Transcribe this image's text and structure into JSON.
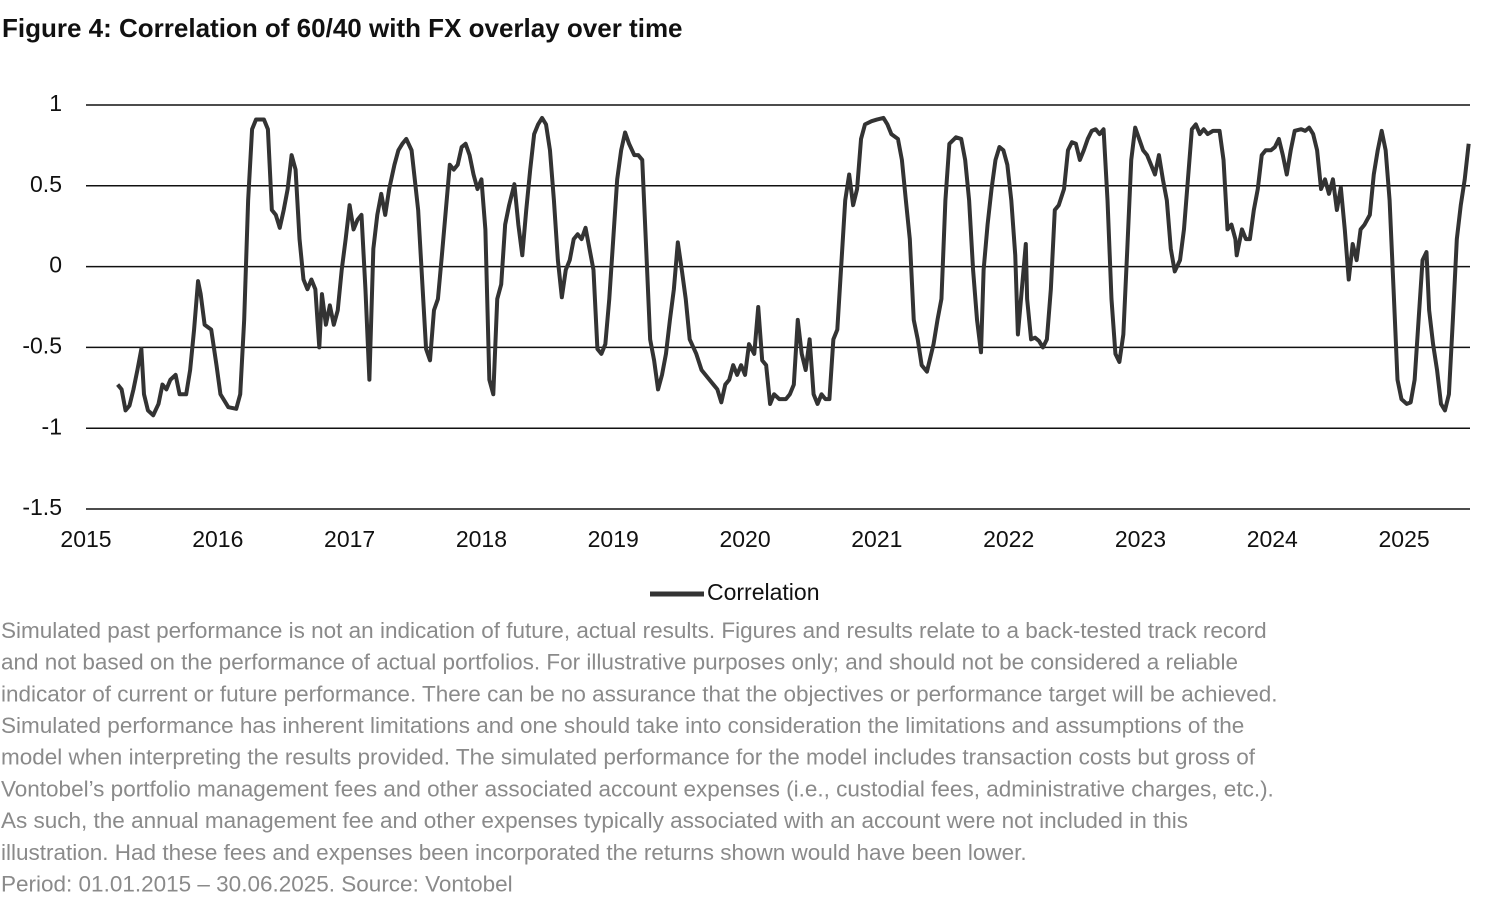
{
  "chart_data": {
    "type": "line",
    "title": "Figure 4: Correlation of 60/40 with FX overlay over time",
    "xlim": [
      2015,
      2025.5
    ],
    "xticks": [
      2015,
      2016,
      2017,
      2018,
      2019,
      2020,
      2021,
      2022,
      2023,
      2024,
      2025
    ],
    "ylim": [
      -1.5,
      1
    ],
    "yticks": [
      -1.5,
      -1,
      -0.5,
      0,
      0.5,
      1
    ],
    "grid": true,
    "legend": "bottom",
    "x": [
      2015.24,
      2015.27,
      2015.3,
      2015.33,
      2015.36,
      2015.39,
      2015.42,
      2015.44,
      2015.47,
      2015.51,
      2015.55,
      2015.58,
      2015.61,
      2015.64,
      2015.68,
      2015.71,
      2015.76,
      2015.79,
      2015.82,
      2015.85,
      2015.87,
      2015.9,
      2015.95,
      2015.99,
      2016.02,
      2016.08,
      2016.14,
      2016.17,
      2016.2,
      2016.23,
      2016.26,
      2016.29,
      2016.35,
      2016.38,
      2016.41,
      2016.44,
      2016.47,
      2016.5,
      2016.53,
      2016.56,
      2016.59,
      2016.62,
      2016.65,
      2016.68,
      2016.71,
      2016.74,
      2016.77,
      2016.79,
      2016.82,
      2016.85,
      2016.88,
      2016.91,
      2016.94,
      2016.97,
      2017.0,
      2017.03,
      2017.06,
      2017.09,
      2017.12,
      2017.15,
      2017.18,
      2017.21,
      2017.24,
      2017.27,
      2017.3,
      2017.34,
      2017.37,
      2017.4,
      2017.43,
      2017.47,
      2017.52,
      2017.55,
      2017.58,
      2017.61,
      2017.64,
      2017.67,
      2017.7,
      2017.73,
      2017.76,
      2017.79,
      2017.82,
      2017.85,
      2017.88,
      2017.91,
      2017.94,
      2017.97,
      2018.0,
      2018.03,
      2018.06,
      2018.09,
      2018.12,
      2018.15,
      2018.18,
      2018.21,
      2018.25,
      2018.28,
      2018.31,
      2018.34,
      2018.37,
      2018.4,
      2018.43,
      2018.46,
      2018.49,
      2018.52,
      2018.55,
      2018.58,
      2018.61,
      2018.64,
      2018.67,
      2018.7,
      2018.73,
      2018.76,
      2018.79,
      2018.82,
      2018.85,
      2018.88,
      2018.91,
      2018.94,
      2018.97,
      2019.0,
      2019.03,
      2019.06,
      2019.09,
      2019.12,
      2019.16,
      2019.19,
      2019.22,
      2019.25,
      2019.28,
      2019.31,
      2019.34,
      2019.37,
      2019.4,
      2019.43,
      2019.46,
      2019.49,
      2019.52,
      2019.55,
      2019.58,
      2019.63,
      2019.67,
      2019.72,
      2019.76,
      2019.79,
      2019.82,
      2019.85,
      2019.88,
      2019.91,
      2019.94,
      2019.97,
      2020.0,
      2020.03,
      2020.07,
      2020.1,
      2020.13,
      2020.16,
      2020.19,
      2020.22,
      2020.26,
      2020.31,
      2020.34,
      2020.37,
      2020.4,
      2020.43,
      2020.46,
      2020.49,
      2020.52,
      2020.55,
      2020.58,
      2020.61,
      2020.64,
      2020.67,
      2020.7,
      2020.73,
      2020.76,
      2020.79,
      2020.82,
      2020.85,
      2020.88,
      2020.91,
      2020.96,
      2021.0,
      2021.05,
      2021.08,
      2021.11,
      2021.16,
      2021.19,
      2021.22,
      2021.25,
      2021.28,
      2021.31,
      2021.34,
      2021.38,
      2021.43,
      2021.46,
      2021.49,
      2021.52,
      2021.55,
      2021.6,
      2021.64,
      2021.67,
      2021.7,
      2021.73,
      2021.76,
      2021.79,
      2021.81,
      2021.84,
      2021.87,
      2021.9,
      2021.93,
      2021.96,
      2021.99,
      2022.02,
      2022.05,
      2022.07,
      2022.1,
      2022.13,
      2022.14,
      2022.17,
      2022.2,
      2022.23,
      2022.26,
      2022.29,
      2022.32,
      2022.35,
      2022.38,
      2022.42,
      2022.45,
      2022.48,
      2022.51,
      2022.54,
      2022.57,
      2022.6,
      2022.63,
      2022.66,
      2022.69,
      2022.72,
      2022.75,
      2022.78,
      2022.81,
      2022.84,
      2022.87,
      2022.9,
      2022.93,
      2022.96,
      2022.99,
      2023.02,
      2023.05,
      2023.08,
      2023.11,
      2023.14,
      2023.17,
      2023.2,
      2023.23,
      2023.26,
      2023.3,
      2023.33,
      2023.36,
      2023.39,
      2023.42,
      2023.45,
      2023.48,
      2023.51,
      2023.55,
      2023.6,
      2023.63,
      2023.66,
      2023.69,
      2023.72,
      2023.73,
      2023.77,
      2023.8,
      2023.83,
      2023.86,
      2023.89,
      2023.92,
      2023.95,
      2023.99,
      2024.02,
      2024.05,
      2024.08,
      2024.11,
      2024.14,
      2024.17,
      2024.22,
      2024.25,
      2024.28,
      2024.31,
      2024.34,
      2024.37,
      2024.4,
      2024.43,
      2024.46,
      2024.49,
      2024.52,
      2024.55,
      2024.58,
      2024.61,
      2024.64,
      2024.67,
      2024.7,
      2024.74,
      2024.77,
      2024.8,
      2024.83,
      2024.86,
      2024.89,
      2024.92,
      2024.95,
      2024.98,
      2025.02,
      2025.05,
      2025.08,
      2025.11,
      2025.14,
      2025.17,
      2025.19,
      2025.22,
      2025.25,
      2025.28,
      2025.31,
      2025.34,
      2025.37,
      2025.4,
      2025.43,
      2025.46,
      2025.49
    ],
    "series": [
      {
        "name": "Correlation",
        "color": "#333333",
        "values": [
          -0.73,
          -0.76,
          -0.89,
          -0.86,
          -0.76,
          -0.64,
          -0.51,
          -0.79,
          -0.89,
          -0.92,
          -0.85,
          -0.73,
          -0.76,
          -0.7,
          -0.67,
          -0.79,
          -0.79,
          -0.64,
          -0.39,
          -0.09,
          -0.17,
          -0.36,
          -0.39,
          -0.61,
          -0.79,
          -0.87,
          -0.88,
          -0.79,
          -0.33,
          0.41,
          0.85,
          0.91,
          0.91,
          0.85,
          0.35,
          0.32,
          0.24,
          0.35,
          0.48,
          0.69,
          0.6,
          0.17,
          -0.08,
          -0.14,
          -0.08,
          -0.14,
          -0.5,
          -0.17,
          -0.36,
          -0.24,
          -0.36,
          -0.27,
          -0.02,
          0.17,
          0.38,
          0.23,
          0.29,
          0.32,
          -0.14,
          -0.7,
          0.11,
          0.32,
          0.45,
          0.32,
          0.48,
          0.63,
          0.72,
          0.76,
          0.79,
          0.72,
          0.35,
          -0.08,
          -0.51,
          -0.58,
          -0.27,
          -0.2,
          0.07,
          0.35,
          0.63,
          0.6,
          0.63,
          0.74,
          0.76,
          0.69,
          0.57,
          0.48,
          0.54,
          0.23,
          -0.7,
          -0.79,
          -0.2,
          -0.11,
          0.26,
          0.38,
          0.51,
          0.26,
          0.07,
          0.35,
          0.6,
          0.82,
          0.88,
          0.92,
          0.88,
          0.72,
          0.41,
          0.04,
          -0.19,
          -0.02,
          0.04,
          0.17,
          0.2,
          0.17,
          0.24,
          0.11,
          -0.02,
          -0.51,
          -0.54,
          -0.48,
          -0.2,
          0.17,
          0.54,
          0.72,
          0.83,
          0.76,
          0.69,
          0.69,
          0.66,
          0.11,
          -0.45,
          -0.58,
          -0.76,
          -0.67,
          -0.54,
          -0.33,
          -0.14,
          0.15,
          -0.02,
          -0.2,
          -0.45,
          -0.54,
          -0.64,
          -0.69,
          -0.73,
          -0.76,
          -0.84,
          -0.73,
          -0.7,
          -0.61,
          -0.67,
          -0.61,
          -0.67,
          -0.48,
          -0.54,
          -0.25,
          -0.58,
          -0.61,
          -0.85,
          -0.79,
          -0.82,
          -0.82,
          -0.79,
          -0.73,
          -0.33,
          -0.54,
          -0.64,
          -0.45,
          -0.79,
          -0.85,
          -0.79,
          -0.82,
          -0.82,
          -0.45,
          -0.39,
          0.01,
          0.41,
          0.57,
          0.38,
          0.48,
          0.79,
          0.88,
          0.9,
          0.91,
          0.92,
          0.88,
          0.82,
          0.79,
          0.66,
          0.41,
          0.17,
          -0.33,
          -0.45,
          -0.61,
          -0.65,
          -0.48,
          -0.33,
          -0.2,
          0.41,
          0.76,
          0.8,
          0.79,
          0.66,
          0.41,
          -0.02,
          -0.33,
          -0.53,
          -0.02,
          0.26,
          0.48,
          0.66,
          0.74,
          0.72,
          0.63,
          0.41,
          0.07,
          -0.42,
          -0.14,
          0.14,
          -0.2,
          -0.45,
          -0.44,
          -0.46,
          -0.5,
          -0.45,
          -0.14,
          0.35,
          0.38,
          0.48,
          0.72,
          0.77,
          0.76,
          0.66,
          0.72,
          0.79,
          0.84,
          0.85,
          0.82,
          0.85,
          0.41,
          -0.2,
          -0.54,
          -0.59,
          -0.42,
          0.11,
          0.66,
          0.86,
          0.79,
          0.72,
          0.69,
          0.63,
          0.57,
          0.69,
          0.54,
          0.41,
          0.11,
          -0.03,
          0.04,
          0.23,
          0.54,
          0.85,
          0.88,
          0.82,
          0.85,
          0.82,
          0.84,
          0.84,
          0.66,
          0.23,
          0.26,
          0.17,
          0.07,
          0.23,
          0.17,
          0.17,
          0.35,
          0.48,
          0.69,
          0.72,
          0.72,
          0.74,
          0.79,
          0.69,
          0.57,
          0.72,
          0.84,
          0.85,
          0.84,
          0.86,
          0.82,
          0.72,
          0.48,
          0.54,
          0.45,
          0.54,
          0.35,
          0.49,
          0.23,
          -0.08,
          0.14,
          0.04,
          0.23,
          0.26,
          0.32,
          0.57,
          0.72,
          0.84,
          0.72,
          0.41,
          -0.14,
          -0.7,
          -0.82,
          -0.85,
          -0.84,
          -0.7,
          -0.33,
          0.04,
          0.09,
          -0.27,
          -0.48,
          -0.64,
          -0.85,
          -0.89,
          -0.79,
          -0.33,
          0.17,
          0.38,
          0.54,
          0.76
        ]
      }
    ],
    "footnote": [
      "Simulated past performance is not an indication of future, actual results. Figures and results relate to a back-tested track record",
      "and not based on the performance of actual portfolios. For illustrative purposes only; and should not be considered a reliable",
      "indicator of current or future performance. There can be no assurance that the objectives or performance target will be achieved.",
      "Simulated performance has inherent limitations and one should take into consideration the limitations and assumptions of the",
      "model when interpreting the results provided. The simulated performance for the model includes transaction costs but gross of",
      "Vontobel’s portfolio management fees and other associated account expenses (i.e., custodial fees, administrative charges, etc.).",
      "As such, the annual management fee and other expenses typically associated with an account were not included in this",
      "illustration. Had these fees and expenses been incorporated the returns shown would have been lower.",
      "Period: 01.01.2015 – 30.06.2025. Source: Vontobel"
    ]
  }
}
